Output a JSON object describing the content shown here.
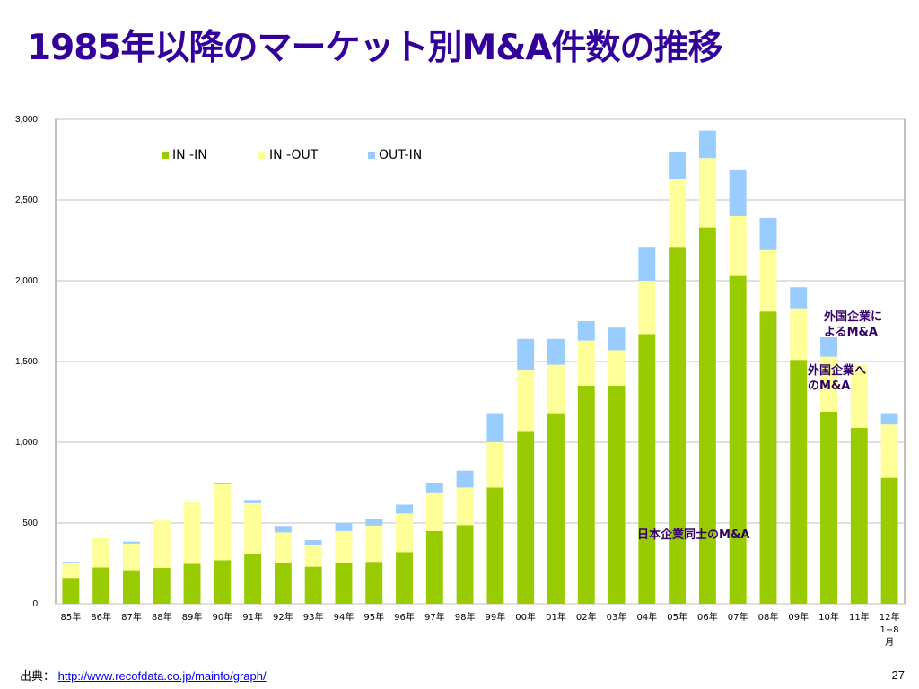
{
  "slide": {
    "title": "1985年以降のマーケット別M&A件数の推移",
    "source_label": "出典：",
    "source_url": "http://www.recofdata.co.jp/mainfo/graph/",
    "page_number": "27"
  },
  "annotations": {
    "out_in": "外国企業に\nよるM&A",
    "in_out": "外国企業へ\nのM&A",
    "in_in": "日本企業同士のM&A"
  },
  "colors": {
    "in_in": "#99cc00",
    "in_out": "#ffff99",
    "out_in": "#99ccff",
    "grid": "#c0c0c0",
    "title": "#330099"
  },
  "chart_data": {
    "type": "bar",
    "stacked": true,
    "categories": [
      "85年",
      "86年",
      "87年",
      "88年",
      "89年",
      "90年",
      "91年",
      "92年",
      "93年",
      "94年",
      "95年",
      "96年",
      "97年",
      "98年",
      "99年",
      "00年",
      "01年",
      "02年",
      "03年",
      "04年",
      "05年",
      "06年",
      "07年",
      "08年",
      "09年",
      "10年",
      "11年",
      "12年\n1−8\n月"
    ],
    "series": [
      {
        "name": "IN -IN",
        "values": [
          160,
          225,
          208,
          223,
          248,
          270,
          310,
          254,
          230,
          254,
          260,
          320,
          450,
          487,
          720,
          1070,
          1180,
          1350,
          1350,
          1670,
          2210,
          2330,
          2030,
          1810,
          1510,
          1190,
          1090,
          780
        ]
      },
      {
        "name": "IN -OUT",
        "values": [
          90,
          181,
          165,
          293,
          379,
          470,
          313,
          188,
          134,
          197,
          224,
          239,
          240,
          233,
          280,
          380,
          300,
          280,
          220,
          330,
          420,
          430,
          370,
          380,
          320,
          340,
          390,
          330
        ]
      },
      {
        "name": "OUT-IN",
        "values": [
          10,
          0,
          12,
          0,
          0,
          10,
          20,
          40,
          30,
          50,
          40,
          55,
          60,
          104,
          180,
          190,
          160,
          120,
          140,
          210,
          170,
          170,
          290,
          200,
          130,
          120,
          0,
          70
        ]
      }
    ],
    "ylim": [
      0,
      3000
    ],
    "yticks": [
      "0",
      "500",
      "1,000",
      "1,500",
      "2,000",
      "2,500",
      "3,000"
    ],
    "ytick_values": [
      0,
      500,
      1000,
      1500,
      2000,
      2500,
      3000
    ],
    "grid": true,
    "legend_placement": "top-left"
  }
}
